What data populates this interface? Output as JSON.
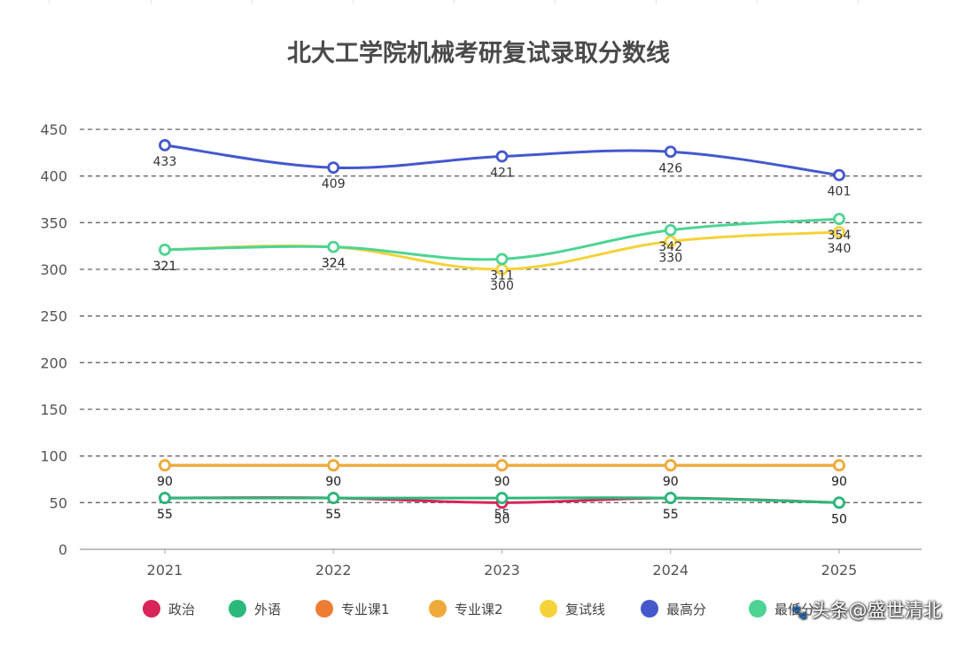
{
  "chart_data": {
    "type": "line",
    "title": "北大工学院机械考研复试录取分数线",
    "categories": [
      "2021",
      "2022",
      "2023",
      "2024",
      "2025"
    ],
    "y_ticks": [
      0,
      50,
      100,
      150,
      200,
      250,
      300,
      350,
      400,
      450
    ],
    "ylim": [
      0,
      450
    ],
    "grid": true,
    "grid_style": "dashed",
    "legend_position": "bottom",
    "series": [
      {
        "name": "政治",
        "color": "#d9245a",
        "values": [
          55,
          55,
          50,
          55,
          50
        ]
      },
      {
        "name": "外语",
        "color": "#2ab97a",
        "values": [
          55,
          55,
          55,
          55,
          50
        ]
      },
      {
        "name": "专业课1",
        "color": "#ee7d33",
        "values": [
          90,
          90,
          90,
          90,
          90
        ]
      },
      {
        "name": "专业课2",
        "color": "#f0aa3a",
        "values": [
          90,
          90,
          90,
          90,
          90
        ]
      },
      {
        "name": "复试线",
        "color": "#f5d23a",
        "values": [
          321,
          324,
          300,
          330,
          340
        ]
      },
      {
        "name": "最高分",
        "color": "#4458cc",
        "values": [
          433,
          409,
          421,
          426,
          401
        ]
      },
      {
        "name": "最低分",
        "color": "#4dd494",
        "values": [
          321,
          324,
          311,
          342,
          354
        ]
      }
    ]
  },
  "watermark": "头条@盛世清北",
  "watermark_icon": "paw-icon"
}
